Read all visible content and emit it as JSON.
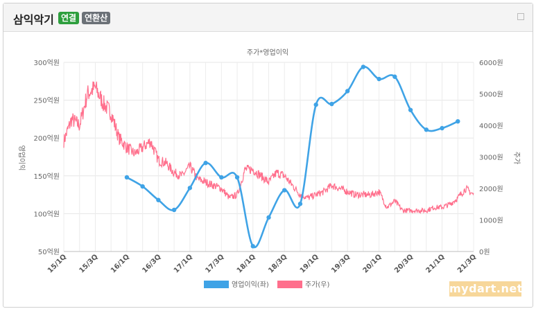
{
  "header": {
    "company": "삼익악기",
    "badge_consolidated": "연결",
    "badge_annualized": "연환산"
  },
  "watermark": "mydart.net",
  "colors": {
    "profit": "#3fa3e6",
    "price": "#ff6f8c",
    "consolidated": "#2e9f3e",
    "annualized": "#6b7177"
  },
  "chart_data": {
    "type": "line",
    "title": "주가*영업이익",
    "ylabel_left": "영업이익",
    "ylabel_right": "주가",
    "y_left_ticks": [
      "50억원",
      "100억원",
      "150억원",
      "200억원",
      "250억원",
      "300억원"
    ],
    "y_right_ticks": [
      "0원",
      "1000원",
      "2000원",
      "3000원",
      "4000원",
      "5000원",
      "6000원"
    ],
    "ylim_left": [
      50,
      300
    ],
    "ylim_right": [
      0,
      6000
    ],
    "x_tick_labels": [
      "15/1Q",
      "15/3Q",
      "16/1Q",
      "16/3Q",
      "17/1Q",
      "17/3Q",
      "18/1Q",
      "18/3Q",
      "19/1Q",
      "19/3Q",
      "20/1Q",
      "20/3Q",
      "21/1Q",
      "21/3Q"
    ],
    "grid": true,
    "legend_position": "bottom",
    "series": [
      {
        "name": "영업이익(좌)",
        "axis": "left",
        "x": [
          "16/1Q",
          "16/2Q",
          "16/3Q",
          "16/4Q",
          "17/1Q",
          "17/2Q",
          "17/3Q",
          "17/4Q",
          "18/1Q",
          "18/2Q",
          "18/3Q",
          "18/4Q",
          "19/1Q",
          "19/2Q",
          "19/3Q",
          "19/4Q",
          "20/1Q",
          "20/2Q",
          "20/3Q",
          "20/4Q",
          "21/1Q",
          "21/2Q"
        ],
        "values": [
          148,
          136,
          118,
          105,
          134,
          167,
          148,
          148,
          57,
          95,
          131,
          113,
          244,
          245,
          262,
          294,
          278,
          281,
          237,
          211,
          213,
          222
        ]
      },
      {
        "name": "주가(우)",
        "axis": "right",
        "points": [
          [
            "15/1Q",
            3500
          ],
          [
            "15/1Q+",
            4200
          ],
          [
            "15/2Q",
            4000
          ],
          [
            "15/2Q+",
            5000
          ],
          [
            "15/3Q",
            5200
          ],
          [
            "15/3Q+",
            4700
          ],
          [
            "15/4Q",
            4400
          ],
          [
            "15/4Q+",
            3600
          ],
          [
            "16/1Q",
            3300
          ],
          [
            "16/1Q+",
            3100
          ],
          [
            "16/2Q",
            3300
          ],
          [
            "16/2Q+",
            3500
          ],
          [
            "16/3Q",
            2900
          ],
          [
            "16/3Q+",
            2800
          ],
          [
            "16/4Q",
            2500
          ],
          [
            "16/4Q+",
            2400
          ],
          [
            "17/1Q",
            2700
          ],
          [
            "17/1Q+",
            2300
          ],
          [
            "17/2Q",
            2200
          ],
          [
            "17/2Q+",
            2100
          ],
          [
            "17/3Q",
            2000
          ],
          [
            "17/3Q+",
            1700
          ],
          [
            "17/4Q",
            1800
          ],
          [
            "17/4Q+",
            2600
          ],
          [
            "18/1Q",
            2600
          ],
          [
            "18/1Q+",
            2400
          ],
          [
            "18/2Q",
            2200
          ],
          [
            "18/2Q+",
            2500
          ],
          [
            "18/3Q",
            2400
          ],
          [
            "18/3Q+",
            2100
          ],
          [
            "18/4Q",
            1800
          ],
          [
            "18/4Q+",
            1700
          ],
          [
            "19/1Q",
            1800
          ],
          [
            "19/1Q+",
            1900
          ],
          [
            "19/2Q",
            2100
          ],
          [
            "19/2Q+",
            2000
          ],
          [
            "19/3Q",
            1900
          ],
          [
            "19/3Q+",
            1800
          ],
          [
            "19/4Q",
            1800
          ],
          [
            "19/4Q+",
            1800
          ],
          [
            "20/1Q",
            1900
          ],
          [
            "20/1Q+",
            1400
          ],
          [
            "20/2Q",
            1600
          ],
          [
            "20/2Q+",
            1300
          ],
          [
            "20/3Q",
            1300
          ],
          [
            "20/3Q+",
            1300
          ],
          [
            "20/4Q",
            1300
          ],
          [
            "20/4Q+",
            1400
          ],
          [
            "21/1Q",
            1400
          ],
          [
            "21/1Q+",
            1500
          ],
          [
            "21/2Q",
            1700
          ],
          [
            "21/2Q+",
            2000
          ],
          [
            "21/3Q",
            1800
          ]
        ]
      }
    ]
  }
}
